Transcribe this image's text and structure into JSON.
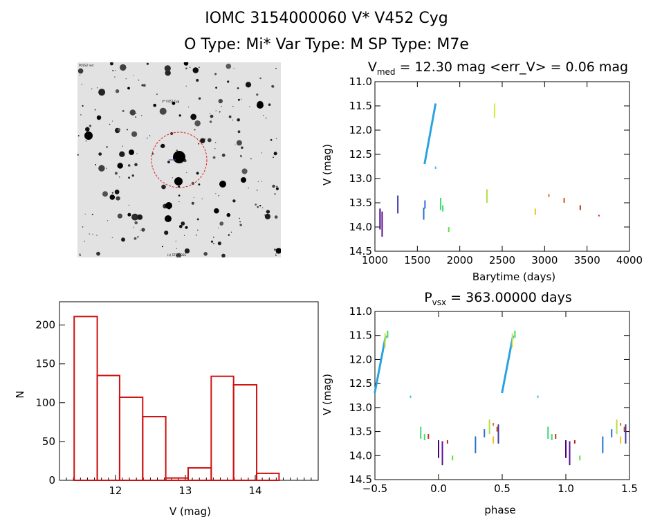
{
  "header": {
    "line1": "IOMC 3154000060    V* V452 Cyg",
    "line2": "O Type: Mi*  Var Type: M  SP Type: M7e"
  },
  "image_panel": {
    "corner_tl": "POSS2 red",
    "label_top": "V* V452 Cyg",
    "label_bottom": "(c) STScI DSS",
    "label_bl": "N",
    "label_br": "E"
  },
  "chart_data": [
    {
      "id": "lightcurve",
      "type": "scatter",
      "title": "V_med = 12.30 mag <err_V> = 0.06 mag",
      "title_parts": {
        "main": "V",
        "sub": "med",
        "rest": " = 12.30 mag <err_V> = 0.06 mag"
      },
      "xlabel": "Barytime (days)",
      "ylabel": "V (mag)",
      "xlim": [
        1000,
        4000
      ],
      "ylim": [
        14.5,
        11.0
      ],
      "xticks": [
        1000,
        1500,
        2000,
        2500,
        3000,
        3500,
        4000
      ],
      "yticks": [
        11.0,
        11.5,
        12.0,
        12.5,
        13.0,
        13.5,
        14.0,
        14.5
      ],
      "ytick_labels": [
        "11.0",
        "11.5",
        "12.0",
        "12.5",
        "13.0",
        "13.5",
        "14.0",
        "14.5"
      ],
      "clusters": [
        {
          "x": 1060,
          "y0": 13.62,
          "y1": 14.05,
          "color": "#4b0082"
        },
        {
          "x": 1085,
          "y0": 13.68,
          "y1": 14.2,
          "color": "#5a1090"
        },
        {
          "x": 1270,
          "y0": 13.35,
          "y1": 13.72,
          "color": "#3a3aa8"
        },
        {
          "x": 1575,
          "y0": 13.6,
          "y1": 13.85,
          "color": "#2a6ed0"
        },
        {
          "x": 1590,
          "y0": 13.45,
          "y1": 13.62,
          "color": "#2a6ed0"
        },
        {
          "x": 1650,
          "y0": 11.45,
          "y1": 12.7,
          "color": "#29a3e0",
          "slanted": true
        },
        {
          "x": 1715,
          "y0": 12.75,
          "y1": 12.8,
          "color": "#40c8e0"
        },
        {
          "x": 1775,
          "y0": 13.4,
          "y1": 13.65,
          "color": "#3ddc6e"
        },
        {
          "x": 1800,
          "y0": 13.55,
          "y1": 13.68,
          "color": "#3ddc6e"
        },
        {
          "x": 1870,
          "y0": 14.0,
          "y1": 14.1,
          "color": "#60e040"
        },
        {
          "x": 2320,
          "y0": 13.22,
          "y1": 13.5,
          "color": "#b0e040"
        },
        {
          "x": 2410,
          "y0": 11.45,
          "y1": 11.75,
          "color": "#d8e838"
        },
        {
          "x": 2890,
          "y0": 13.62,
          "y1": 13.75,
          "color": "#f0c020"
        },
        {
          "x": 3050,
          "y0": 13.32,
          "y1": 13.38,
          "color": "#e07020"
        },
        {
          "x": 3230,
          "y0": 13.4,
          "y1": 13.5,
          "color": "#d85018"
        },
        {
          "x": 3420,
          "y0": 13.55,
          "y1": 13.65,
          "color": "#c83018"
        },
        {
          "x": 3640,
          "y0": 13.75,
          "y1": 13.78,
          "color": "#c02010"
        }
      ]
    },
    {
      "id": "histogram",
      "type": "bar",
      "title": "",
      "xlabel": "V (mag)",
      "ylabel": "N",
      "xlim": [
        11.2,
        14.9
      ],
      "ylim": [
        0,
        230
      ],
      "xticks": [
        12,
        13,
        14
      ],
      "yticks": [
        0,
        50,
        100,
        150,
        200
      ],
      "bin_edges": [
        11.41,
        11.74,
        12.06,
        12.39,
        12.72,
        13.04,
        13.37,
        13.69,
        14.02,
        14.34
      ],
      "values": [
        211,
        135,
        107,
        82,
        3,
        16,
        134,
        123,
        9
      ]
    },
    {
      "id": "phased",
      "type": "scatter",
      "title": "P_vsx = 363.00000 days",
      "title_parts": {
        "main": "P",
        "sub": "vsx",
        "rest": " = 363.00000 days"
      },
      "xlabel": "phase",
      "ylabel": "V (mag)",
      "xlim": [
        -0.5,
        1.5
      ],
      "ylim": [
        14.5,
        11.0
      ],
      "xticks": [
        -0.5,
        0.0,
        0.5,
        1.0,
        1.5
      ],
      "xtick_labels": [
        "−0.5",
        "0.0",
        "0.5",
        "1.0",
        "1.5"
      ],
      "yticks": [
        11.0,
        11.5,
        12.0,
        12.5,
        13.0,
        13.5,
        14.0,
        14.5
      ],
      "ytick_labels": [
        "11.0",
        "11.5",
        "12.0",
        "12.5",
        "13.0",
        "13.5",
        "14.0",
        "14.5"
      ],
      "phase_clusters": [
        {
          "p": 0.0,
          "y0": 13.68,
          "y1": 14.05,
          "color": "#4b0082"
        },
        {
          "p": 0.03,
          "y0": 13.7,
          "y1": 14.2,
          "color": "#5a1090"
        },
        {
          "p": 0.07,
          "y0": 13.68,
          "y1": 13.75,
          "color": "#c02010"
        },
        {
          "p": 0.11,
          "y0": 14.0,
          "y1": 14.1,
          "color": "#60e040"
        },
        {
          "p": 0.29,
          "y0": 13.6,
          "y1": 13.95,
          "color": "#2a6ed0"
        },
        {
          "p": 0.36,
          "y0": 13.45,
          "y1": 13.62,
          "color": "#2a6ed0"
        },
        {
          "p": 0.4,
          "y0": 13.25,
          "y1": 13.55,
          "color": "#b0e040"
        },
        {
          "p": 0.43,
          "y0": 13.32,
          "y1": 13.38,
          "color": "#e07020"
        },
        {
          "p": 0.43,
          "y0": 13.6,
          "y1": 13.75,
          "color": "#f0c020"
        },
        {
          "p": 0.46,
          "y0": 13.4,
          "y1": 13.5,
          "color": "#d85018"
        },
        {
          "p": 0.47,
          "y0": 13.35,
          "y1": 13.75,
          "color": "#3a3aa8"
        },
        {
          "p": 0.52,
          "y0": 11.5,
          "y1": 12.7,
          "color": "#29a3e0",
          "slanted": true
        },
        {
          "p": 0.58,
          "y0": 11.45,
          "y1": 11.75,
          "color": "#d8e838"
        },
        {
          "p": 0.6,
          "y0": 11.4,
          "y1": 11.55,
          "color": "#3ddc6e"
        },
        {
          "p": 0.78,
          "y0": 12.75,
          "y1": 12.8,
          "color": "#40c8e0"
        },
        {
          "p": 0.86,
          "y0": 13.4,
          "y1": 13.65,
          "color": "#3ddc6e"
        },
        {
          "p": 0.89,
          "y0": 13.55,
          "y1": 13.68,
          "color": "#3ddc6e"
        },
        {
          "p": 0.92,
          "y0": 13.55,
          "y1": 13.65,
          "color": "#c83018"
        }
      ]
    }
  ]
}
